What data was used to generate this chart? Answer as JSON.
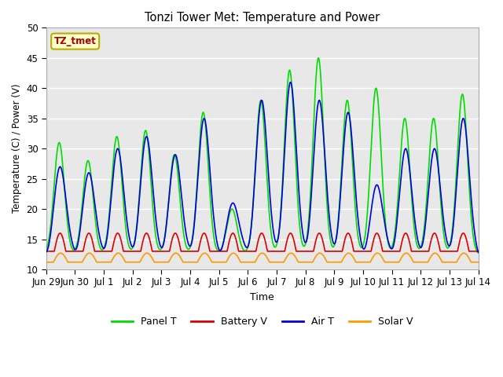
{
  "title": "Tonzi Tower Met: Temperature and Power",
  "xlabel": "Time",
  "ylabel": "Temperature (C) / Power (V)",
  "ylim": [
    10,
    50
  ],
  "annotation_text": "TZ_tmet",
  "annotation_color": "#aa0000",
  "annotation_bg": "#ffffcc",
  "annotation_border": "#bbaa00",
  "plot_bg": "#e8e8e8",
  "fig_bg": "#ffffff",
  "grid_color": "#ffffff",
  "series": {
    "panel_t": {
      "label": "Panel T",
      "color": "#00dd00",
      "lw": 1.2
    },
    "battery_v": {
      "label": "Battery V",
      "color": "#dd0000",
      "lw": 1.2
    },
    "air_t": {
      "label": "Air T",
      "color": "#0000dd",
      "lw": 1.2
    },
    "solar_v": {
      "label": "Solar V",
      "color": "#ff9900",
      "lw": 1.2
    }
  },
  "xtick_labels": [
    "Jun 29",
    "Jun 30",
    "Jul 1",
    "Jul 2",
    "Jul 3",
    "Jul 4",
    "Jul 5",
    "Jul 6",
    "Jul 7",
    "Jul 8",
    "Jul 9",
    "Jul 10",
    "Jul 11",
    "Jul 12",
    "Jul 13",
    "Jul 14"
  ],
  "xtick_positions": [
    0,
    1,
    2,
    3,
    4,
    5,
    6,
    7,
    8,
    9,
    10,
    11,
    12,
    13,
    14,
    15
  ],
  "ytick_positions": [
    10,
    15,
    20,
    25,
    30,
    35,
    40,
    45,
    50
  ]
}
